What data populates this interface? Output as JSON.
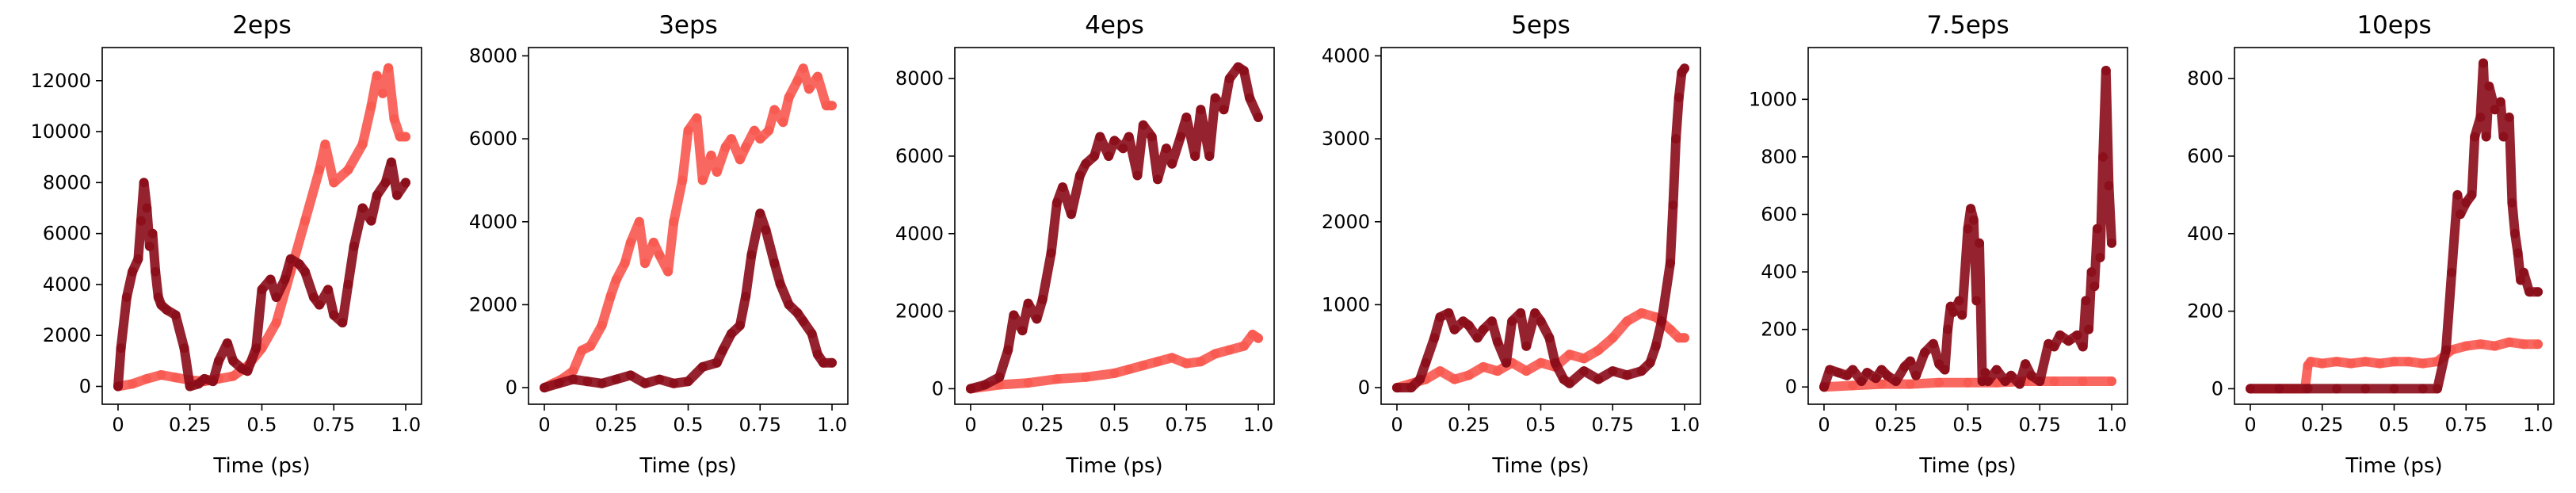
{
  "figure": {
    "background": "#ffffff"
  },
  "chart_data": [
    {
      "type": "scatter",
      "title": "2eps",
      "xlabel": "Time (ps)",
      "ylabel": "",
      "xlim": [
        -0.055,
        1.055
      ],
      "ylim": [
        -700,
        13300
      ],
      "xticks": [
        0,
        0.25,
        0.5,
        0.75,
        1.0
      ],
      "xtick_labels": [
        "0",
        "0.25",
        "0.5",
        "0.75",
        "1.0"
      ],
      "yticks": [
        0,
        2000,
        4000,
        6000,
        8000,
        10000,
        12000
      ],
      "ytick_labels": [
        "0",
        "2000",
        "4000",
        "6000",
        "8000",
        "10000",
        "12000"
      ],
      "series": [
        {
          "color": "#f8584f",
          "x": [
            0,
            0.05,
            0.1,
            0.15,
            0.2,
            0.25,
            0.3,
            0.35,
            0.4,
            0.45,
            0.5,
            0.55,
            0.6,
            0.65,
            0.7,
            0.72,
            0.75,
            0.8,
            0.85,
            0.88,
            0.9,
            0.92,
            0.94,
            0.96,
            0.98,
            1.0
          ],
          "y": [
            0,
            100,
            300,
            450,
            350,
            250,
            200,
            300,
            400,
            800,
            1500,
            2500,
            4500,
            6500,
            8500,
            9500,
            8000,
            8500,
            9500,
            11000,
            12200,
            11500,
            12500,
            10500,
            9800,
            9800
          ]
        },
        {
          "color": "#8a0b18",
          "x": [
            0,
            0.01,
            0.03,
            0.05,
            0.07,
            0.08,
            0.09,
            0.1,
            0.11,
            0.12,
            0.13,
            0.14,
            0.15,
            0.17,
            0.2,
            0.23,
            0.25,
            0.28,
            0.3,
            0.33,
            0.35,
            0.38,
            0.4,
            0.43,
            0.45,
            0.48,
            0.5,
            0.53,
            0.55,
            0.58,
            0.6,
            0.63,
            0.65,
            0.68,
            0.7,
            0.73,
            0.75,
            0.78,
            0.8,
            0.82,
            0.85,
            0.88,
            0.9,
            0.93,
            0.95,
            0.97,
            1.0
          ],
          "y": [
            0,
            1500,
            3500,
            4500,
            5000,
            6500,
            8000,
            7000,
            5500,
            6000,
            4500,
            3500,
            3200,
            3000,
            2800,
            1500,
            0,
            100,
            300,
            200,
            1000,
            1700,
            1000,
            700,
            600,
            1500,
            3800,
            4200,
            3500,
            4200,
            5000,
            4800,
            4500,
            3500,
            3200,
            3800,
            2800,
            2500,
            4000,
            5500,
            7000,
            6500,
            7500,
            8000,
            8800,
            7500,
            8000
          ]
        }
      ]
    },
    {
      "type": "scatter",
      "title": "3eps",
      "xlabel": "Time (ps)",
      "ylabel": "",
      "xlim": [
        -0.055,
        1.055
      ],
      "ylim": [
        -400,
        8200
      ],
      "xticks": [
        0,
        0.25,
        0.5,
        0.75,
        1.0
      ],
      "xtick_labels": [
        "0",
        "0.25",
        "0.5",
        "0.75",
        "1.0"
      ],
      "yticks": [
        0,
        2000,
        4000,
        6000,
        8000
      ],
      "ytick_labels": [
        "0",
        "2000",
        "4000",
        "6000",
        "8000"
      ],
      "series": [
        {
          "color": "#f8584f",
          "x": [
            0,
            0.03,
            0.06,
            0.1,
            0.13,
            0.16,
            0.2,
            0.23,
            0.25,
            0.28,
            0.3,
            0.33,
            0.35,
            0.38,
            0.4,
            0.43,
            0.45,
            0.48,
            0.5,
            0.53,
            0.55,
            0.58,
            0.6,
            0.63,
            0.65,
            0.68,
            0.7,
            0.73,
            0.75,
            0.78,
            0.8,
            0.83,
            0.85,
            0.88,
            0.9,
            0.92,
            0.95,
            0.98,
            1.0
          ],
          "y": [
            0,
            100,
            200,
            400,
            900,
            1000,
            1500,
            2200,
            2600,
            3000,
            3500,
            4000,
            3000,
            3500,
            3200,
            2800,
            4000,
            5000,
            6200,
            6500,
            5000,
            5600,
            5200,
            5800,
            6000,
            5500,
            5800,
            6200,
            6000,
            6200,
            6700,
            6400,
            7000,
            7400,
            7700,
            7200,
            7500,
            6800,
            6800
          ]
        },
        {
          "color": "#8a0b18",
          "x": [
            0,
            0.05,
            0.1,
            0.15,
            0.2,
            0.25,
            0.3,
            0.35,
            0.4,
            0.45,
            0.5,
            0.55,
            0.6,
            0.62,
            0.65,
            0.68,
            0.7,
            0.72,
            0.75,
            0.77,
            0.8,
            0.82,
            0.85,
            0.88,
            0.9,
            0.93,
            0.95,
            0.97,
            1.0
          ],
          "y": [
            0,
            100,
            200,
            150,
            100,
            200,
            300,
            100,
            200,
            100,
            150,
            500,
            600,
            900,
            1300,
            1500,
            2200,
            3200,
            4200,
            3800,
            3000,
            2500,
            2000,
            1800,
            1600,
            1300,
            800,
            600,
            600
          ]
        }
      ]
    },
    {
      "type": "scatter",
      "title": "4eps",
      "xlabel": "Time (ps)",
      "ylabel": "",
      "xlim": [
        -0.055,
        1.055
      ],
      "ylim": [
        -400,
        8800
      ],
      "xticks": [
        0,
        0.25,
        0.5,
        0.75,
        1.0
      ],
      "xtick_labels": [
        "0",
        "0.25",
        "0.5",
        "0.75",
        "1.0"
      ],
      "yticks": [
        0,
        2000,
        4000,
        6000,
        8000
      ],
      "ytick_labels": [
        "0",
        "2000",
        "4000",
        "6000",
        "8000"
      ],
      "series": [
        {
          "color": "#f8584f",
          "x": [
            0,
            0.1,
            0.2,
            0.3,
            0.4,
            0.5,
            0.55,
            0.6,
            0.65,
            0.7,
            0.75,
            0.8,
            0.85,
            0.9,
            0.95,
            0.98,
            1.0
          ],
          "y": [
            0,
            100,
            150,
            250,
            300,
            400,
            500,
            600,
            700,
            800,
            650,
            700,
            900,
            1000,
            1100,
            1400,
            1300
          ]
        },
        {
          "color": "#8a0b18",
          "x": [
            0,
            0.05,
            0.1,
            0.13,
            0.15,
            0.18,
            0.2,
            0.23,
            0.25,
            0.28,
            0.3,
            0.32,
            0.35,
            0.38,
            0.4,
            0.43,
            0.45,
            0.48,
            0.5,
            0.53,
            0.55,
            0.58,
            0.6,
            0.63,
            0.65,
            0.68,
            0.7,
            0.73,
            0.75,
            0.78,
            0.8,
            0.83,
            0.85,
            0.88,
            0.9,
            0.93,
            0.95,
            0.97,
            1.0
          ],
          "y": [
            0,
            100,
            300,
            1000,
            1900,
            1500,
            2200,
            1800,
            2300,
            3500,
            4800,
            5200,
            4500,
            5500,
            5800,
            6000,
            6500,
            6000,
            6400,
            6200,
            6500,
            5500,
            6800,
            6500,
            5400,
            6200,
            5800,
            6500,
            7000,
            6000,
            7200,
            6000,
            7500,
            7200,
            8000,
            8300,
            8200,
            7500,
            7000
          ]
        }
      ]
    },
    {
      "type": "scatter",
      "title": "5eps",
      "xlabel": "Time (ps)",
      "ylabel": "",
      "xlim": [
        -0.055,
        1.055
      ],
      "ylim": [
        -200,
        4100
      ],
      "xticks": [
        0,
        0.25,
        0.5,
        0.75,
        1.0
      ],
      "xtick_labels": [
        "0",
        "0.25",
        "0.5",
        "0.75",
        "1.0"
      ],
      "yticks": [
        0,
        1000,
        2000,
        3000,
        4000
      ],
      "ytick_labels": [
        "0",
        "1000",
        "2000",
        "3000",
        "4000"
      ],
      "series": [
        {
          "color": "#f8584f",
          "x": [
            0,
            0.05,
            0.1,
            0.15,
            0.2,
            0.25,
            0.3,
            0.35,
            0.4,
            0.45,
            0.5,
            0.55,
            0.6,
            0.65,
            0.7,
            0.75,
            0.8,
            0.85,
            0.9,
            0.95,
            0.98,
            1.0
          ],
          "y": [
            0,
            50,
            100,
            200,
            100,
            150,
            250,
            200,
            300,
            200,
            300,
            250,
            400,
            350,
            450,
            600,
            800,
            900,
            850,
            700,
            600,
            600
          ]
        },
        {
          "color": "#8a0b18",
          "x": [
            0,
            0.05,
            0.08,
            0.1,
            0.13,
            0.15,
            0.18,
            0.2,
            0.23,
            0.25,
            0.28,
            0.3,
            0.33,
            0.35,
            0.38,
            0.4,
            0.43,
            0.45,
            0.48,
            0.5,
            0.53,
            0.55,
            0.58,
            0.6,
            0.65,
            0.7,
            0.75,
            0.8,
            0.85,
            0.88,
            0.9,
            0.92,
            0.95,
            0.96,
            0.97,
            0.98,
            0.99,
            1.0
          ],
          "y": [
            0,
            0,
            100,
            300,
            600,
            850,
            900,
            700,
            800,
            750,
            600,
            700,
            800,
            550,
            300,
            800,
            900,
            500,
            900,
            800,
            600,
            300,
            100,
            50,
            200,
            100,
            200,
            150,
            200,
            300,
            500,
            800,
            1500,
            2200,
            3000,
            3500,
            3800,
            3850
          ]
        }
      ]
    },
    {
      "type": "scatter",
      "title": "7.5eps",
      "xlabel": "Time (ps)",
      "ylabel": "",
      "xlim": [
        -0.055,
        1.055
      ],
      "ylim": [
        -60,
        1180
      ],
      "xticks": [
        0,
        0.25,
        0.5,
        0.75,
        1.0
      ],
      "xtick_labels": [
        "0",
        "0.25",
        "0.5",
        "0.75",
        "1.0"
      ],
      "yticks": [
        0,
        200,
        400,
        600,
        800,
        1000
      ],
      "ytick_labels": [
        "0",
        "200",
        "400",
        "600",
        "800",
        "1000"
      ],
      "series": [
        {
          "color": "#f8584f",
          "x": [
            0,
            0.1,
            0.2,
            0.3,
            0.4,
            0.5,
            0.6,
            0.7,
            0.8,
            0.9,
            1.0
          ],
          "y": [
            0,
            5,
            10,
            10,
            15,
            15,
            15,
            20,
            20,
            20,
            20
          ]
        },
        {
          "color": "#8a0b18",
          "x": [
            0,
            0.02,
            0.05,
            0.08,
            0.1,
            0.13,
            0.15,
            0.18,
            0.2,
            0.22,
            0.25,
            0.28,
            0.3,
            0.32,
            0.35,
            0.38,
            0.4,
            0.42,
            0.43,
            0.44,
            0.45,
            0.47,
            0.48,
            0.5,
            0.51,
            0.52,
            0.53,
            0.54,
            0.55,
            0.56,
            0.57,
            0.6,
            0.63,
            0.65,
            0.68,
            0.7,
            0.72,
            0.75,
            0.78,
            0.8,
            0.82,
            0.85,
            0.88,
            0.9,
            0.91,
            0.92,
            0.93,
            0.94,
            0.95,
            0.96,
            0.97,
            0.98,
            0.99,
            1.0
          ],
          "y": [
            0,
            60,
            50,
            40,
            60,
            20,
            50,
            30,
            60,
            40,
            20,
            70,
            90,
            40,
            120,
            150,
            80,
            60,
            200,
            280,
            260,
            300,
            250,
            550,
            620,
            580,
            300,
            500,
            20,
            50,
            20,
            60,
            20,
            40,
            10,
            80,
            40,
            20,
            150,
            140,
            180,
            160,
            180,
            140,
            300,
            200,
            400,
            350,
            550,
            450,
            800,
            1100,
            700,
            500
          ]
        }
      ]
    },
    {
      "type": "scatter",
      "title": "10eps",
      "xlabel": "Time (ps)",
      "ylabel": "",
      "xlim": [
        -0.055,
        1.055
      ],
      "ylim": [
        -40,
        880
      ],
      "xticks": [
        0,
        0.25,
        0.5,
        0.75,
        1.0
      ],
      "xtick_labels": [
        "0",
        "0.25",
        "0.5",
        "0.75",
        "1.0"
      ],
      "yticks": [
        0,
        200,
        400,
        600,
        800
      ],
      "ytick_labels": [
        "0",
        "200",
        "400",
        "600",
        "800"
      ],
      "series": [
        {
          "color": "#f8584f",
          "x": [
            0,
            0.05,
            0.1,
            0.15,
            0.19,
            0.2,
            0.21,
            0.25,
            0.3,
            0.35,
            0.4,
            0.45,
            0.5,
            0.55,
            0.6,
            0.65,
            0.7,
            0.75,
            0.8,
            0.85,
            0.9,
            0.95,
            1.0
          ],
          "y": [
            0,
            0,
            0,
            0,
            0,
            60,
            70,
            65,
            70,
            65,
            70,
            65,
            70,
            70,
            65,
            70,
            100,
            110,
            115,
            110,
            120,
            115,
            115
          ]
        },
        {
          "color": "#8a0b18",
          "x": [
            0,
            0.1,
            0.2,
            0.3,
            0.4,
            0.5,
            0.6,
            0.65,
            0.68,
            0.7,
            0.72,
            0.73,
            0.75,
            0.77,
            0.78,
            0.8,
            0.81,
            0.82,
            0.83,
            0.85,
            0.87,
            0.88,
            0.9,
            0.91,
            0.92,
            0.93,
            0.94,
            0.95,
            0.97,
            1.0
          ],
          "y": [
            0,
            0,
            0,
            0,
            0,
            0,
            0,
            0,
            100,
            300,
            500,
            450,
            480,
            500,
            650,
            700,
            840,
            650,
            780,
            720,
            740,
            650,
            700,
            480,
            400,
            350,
            280,
            300,
            250,
            250
          ]
        }
      ]
    }
  ]
}
